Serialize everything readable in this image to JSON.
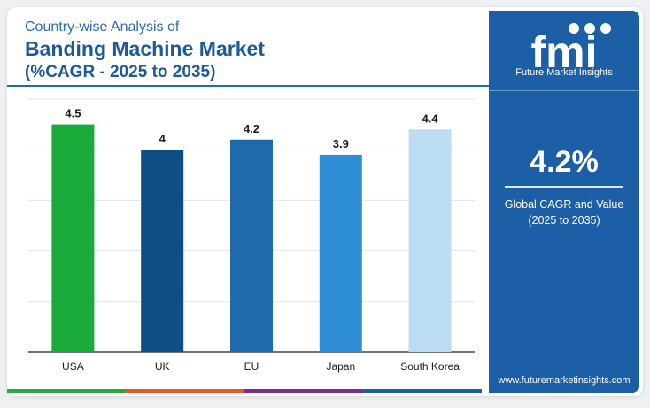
{
  "header": {
    "subtitle": "Country-wise Analysis of",
    "title": "Banding Machine Market",
    "period": "(%CAGR - 2025 to 2035)"
  },
  "chart_data": {
    "type": "bar",
    "title": "Banding Machine Market",
    "categories": [
      "USA",
      "UK",
      "EU",
      "Japan",
      "South Korea"
    ],
    "values": [
      4.5,
      4,
      4.2,
      3.9,
      4.4
    ],
    "value_labels": [
      "4.5",
      "4",
      "4.2",
      "3.9",
      "4.4"
    ],
    "bar_colors": [
      "#1aaa3a",
      "#0f4f86",
      "#1e6aab",
      "#2f8fd6",
      "#bcdcf2"
    ],
    "ylim": [
      0,
      5
    ],
    "grid": true,
    "legend": "none",
    "xlabel": "",
    "ylabel": ""
  },
  "panel": {
    "logo_text": "fmi",
    "logo_sub": "Future Market Insights",
    "big_value": "4.2%",
    "value_label_1": "Global CAGR and Value",
    "value_label_2": "(2025 to 2035)",
    "url": "www.futuremarketinsights.com"
  },
  "colors": {
    "panel_bg": "#1c5fa6",
    "title": "#1d5a99",
    "strip": [
      "#29a845",
      "#e05a2b",
      "#7b2c8f",
      "#1c5fa6"
    ]
  }
}
